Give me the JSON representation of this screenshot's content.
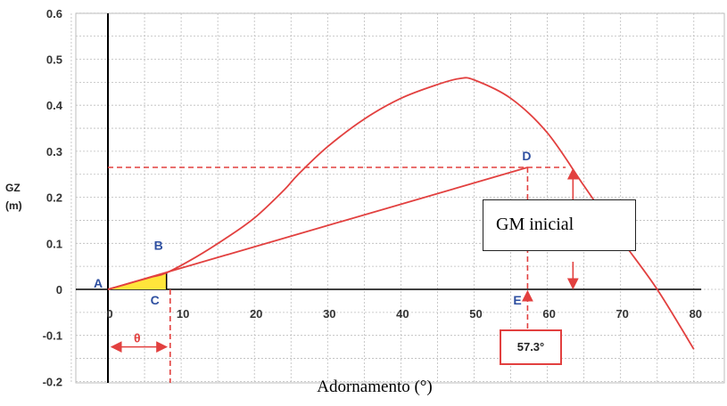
{
  "chart_data": {
    "type": "line",
    "title": "",
    "xlabel": "Adornamento (°)",
    "ylabel": [
      "GZ",
      "(m)"
    ],
    "xlim": [
      -5,
      85
    ],
    "ylim": [
      -0.2,
      0.6
    ],
    "x_ticks": [
      0,
      10,
      20,
      30,
      40,
      50,
      60,
      70,
      80
    ],
    "y_ticks": [
      -0.2,
      -0.1,
      0,
      0.1,
      0.2,
      0.3,
      0.4,
      0.5,
      0.6
    ],
    "y_tick_labels": [
      "-0.2",
      "-0.1",
      "0",
      "0.1",
      "0.2",
      "0.3",
      "0.4",
      "0.5",
      "0.6"
    ],
    "grid": true,
    "series": [
      {
        "x": [
          0,
          2,
          4,
          6,
          8,
          12,
          16,
          20,
          24,
          26,
          30,
          35,
          40,
          45,
          48,
          50,
          55,
          60,
          65,
          70,
          75,
          80
        ],
        "y": [
          0,
          0.009,
          0.018,
          0.027,
          0.036,
          0.07,
          0.11,
          0.155,
          0.215,
          0.25,
          0.31,
          0.37,
          0.415,
          0.445,
          0.458,
          0.455,
          0.415,
          0.34,
          0.225,
          0.11,
          0.0,
          -0.13
        ]
      },
      {
        "x": [
          0,
          57.3
        ],
        "y": [
          0,
          0.265
        ]
      }
    ],
    "annotations": {
      "points": [
        {
          "label": "A",
          "x": 0,
          "y": 0
        },
        {
          "label": "B",
          "x": 8,
          "y": 0.036
        },
        {
          "label": "C",
          "x": 8,
          "y": 0
        },
        {
          "label": "D",
          "x": 57.3,
          "y": 0.265
        },
        {
          "label": "E",
          "x": 57.3,
          "y": 0
        }
      ],
      "theta_label": "θ",
      "gm_box": "GM inicial",
      "angle_box": "57.3°",
      "colors": {
        "curve": "#e2403f",
        "points": "#2e4fa0",
        "triangle": "#ffe53b",
        "grid": "#bcbcbc"
      }
    }
  }
}
